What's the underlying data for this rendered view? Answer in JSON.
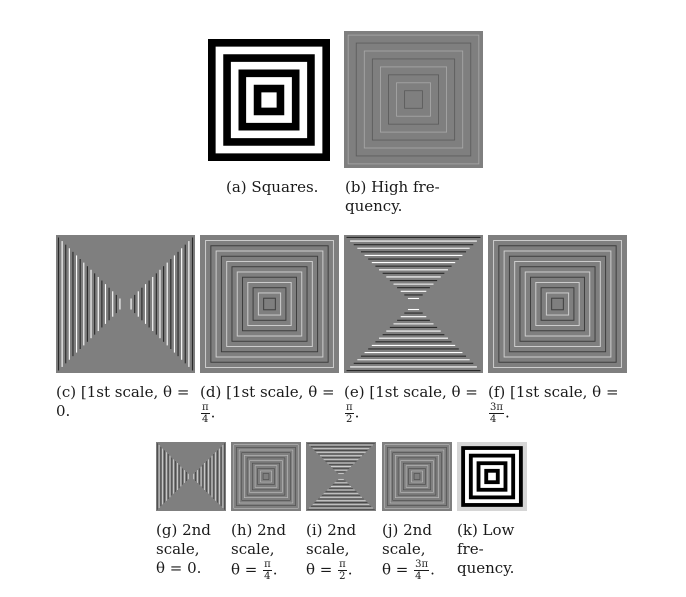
{
  "figure": {
    "panels": [
      {
        "id": "a",
        "pattern": "squares-binary",
        "caption_lines": [
          "(a) Squares."
        ]
      },
      {
        "id": "b",
        "pattern": "high-frequency",
        "caption_lines": [
          "(b) High fre-",
          "quency."
        ]
      },
      {
        "id": "c",
        "pattern": "scale1-theta0",
        "caption_lines": [
          "(c) [1st scale, θ =",
          "0."
        ]
      },
      {
        "id": "d",
        "pattern": "scale1-theta-pi4",
        "caption_lines": [
          "(d) [1st scale, θ =",
          "π/4."
        ],
        "angle": {
          "num": "π",
          "den": "4"
        }
      },
      {
        "id": "e",
        "pattern": "scale1-theta-pi2",
        "caption_lines": [
          "(e) [1st scale, θ =",
          "π/2."
        ],
        "angle": {
          "num": "π",
          "den": "2"
        }
      },
      {
        "id": "f",
        "pattern": "scale1-theta-3pi4",
        "caption_lines": [
          "(f) [1st scale, θ =",
          "3π/4."
        ],
        "angle": {
          "num": "3π",
          "den": "4"
        }
      },
      {
        "id": "g",
        "pattern": "scale2-theta0",
        "caption_lines": [
          "(g) 2nd",
          "scale,",
          "θ = 0."
        ]
      },
      {
        "id": "h",
        "pattern": "scale2-theta-pi4",
        "caption_lines": [
          "(h) 2nd",
          "scale,",
          "θ = π/4."
        ],
        "angle": {
          "num": "π",
          "den": "4"
        }
      },
      {
        "id": "i",
        "pattern": "scale2-theta-pi2",
        "caption_lines": [
          "(i) 2nd",
          "scale,",
          "θ = π/2."
        ],
        "angle": {
          "num": "π",
          "den": "2"
        }
      },
      {
        "id": "j",
        "pattern": "scale2-theta-3pi4",
        "caption_lines": [
          "(j) 2nd",
          "scale,",
          "θ = 3π/4."
        ],
        "angle": {
          "num": "3π",
          "den": "4"
        }
      },
      {
        "id": "k",
        "pattern": "low-frequency",
        "caption_lines": [
          "(k) Low",
          "fre-",
          "quency."
        ]
      }
    ]
  }
}
